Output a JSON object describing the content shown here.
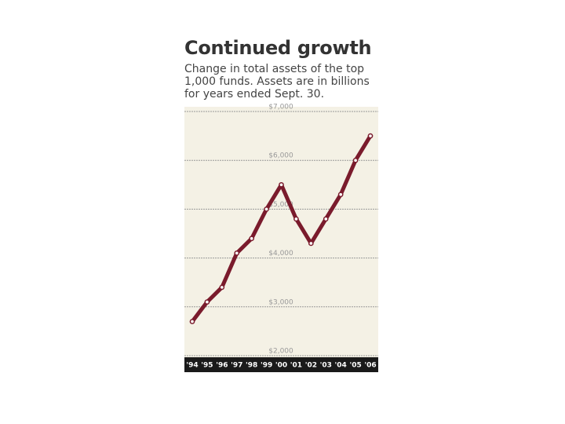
{
  "chart_data": {
    "type": "line",
    "title": "Continued growth",
    "subtitle": "Change in total assets of the top 1,000 funds. Assets are in billions for years ended Sept. 30.",
    "categories": [
      "'94",
      "'95",
      "'96",
      "'97",
      "'98",
      "'99",
      "'00",
      "'01",
      "'02",
      "'03",
      "'04",
      "'05",
      "'06"
    ],
    "series": [
      {
        "name": "Total assets",
        "color": "#7a1b2c",
        "values": [
          2700,
          3100,
          3400,
          4100,
          4400,
          5000,
          5500,
          4800,
          4300,
          4800,
          5300,
          6000,
          6500
        ]
      }
    ],
    "ylim": [
      2000,
      7000
    ],
    "yticks": [
      {
        "value": 2000,
        "label": "$2,000"
      },
      {
        "value": 3000,
        "label": "$3,000"
      },
      {
        "value": 4000,
        "label": "$4,000"
      },
      {
        "value": 5000,
        "label": "$5,000"
      },
      {
        "value": 6000,
        "label": "$6,000"
      },
      {
        "value": 7000,
        "label": "$7,000"
      }
    ],
    "grid": true
  }
}
